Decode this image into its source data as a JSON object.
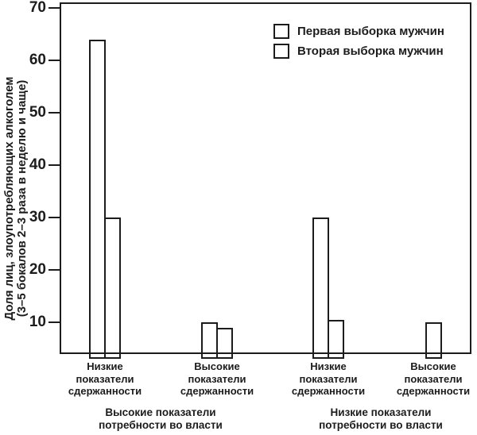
{
  "colors": {
    "ink": "#1c1c1c",
    "background": "#ffffff"
  },
  "y_axis": {
    "label_line1": "Доля лиц, злоупотребляющих алкоголем",
    "label_line2": "(3–5 бокалов 2–3 раза в неделю и чаще)"
  },
  "legend": {
    "items": [
      {
        "label": "Первая выборка мужчин"
      },
      {
        "label": "Вторая выборка мужчин"
      }
    ]
  },
  "x_axis": {
    "categories": [
      "Низкие\nпоказатели\nсдержанности",
      "Высокие\nпоказатели\nсдержанности",
      "Низкие\nпоказатели\nсдержанности",
      "Высокие\nпоказатели\nсдержанности"
    ],
    "group_labels": [
      "Высокие показатели\nпотребности во власти",
      "Низкие показатели\nпотребности во власти"
    ]
  },
  "chart_data": {
    "type": "bar",
    "title": "",
    "categories": [
      "Низкие показатели сдержанности",
      "Высокие показатели сдержанности",
      "Низкие показатели сдержанности",
      "Высокие показатели сдержанности"
    ],
    "category_groups": [
      "Высокие показатели потребности во власти",
      "Высокие показатели потребности во власти",
      "Низкие показатели потребности во власти",
      "Низкие показатели потребности во власти"
    ],
    "series": [
      {
        "name": "Первая выборка мужчин",
        "values": [
          64,
          10,
          30,
          10
        ]
      },
      {
        "name": "Вторая выборка мужчин",
        "values": [
          30,
          9,
          10.5,
          null
        ]
      }
    ],
    "ylabel": "Доля лиц, злоупотребляющих алкоголем (3–5 бокалов 2–3 раза в неделю и чаще)",
    "yticks": [
      70,
      60,
      50,
      40,
      30,
      20,
      10
    ],
    "ylim": [
      4,
      71
    ],
    "grid": false,
    "legend_position": "top-right",
    "bar_fill": "#ffffff",
    "bar_border": "#1c1c1c"
  }
}
